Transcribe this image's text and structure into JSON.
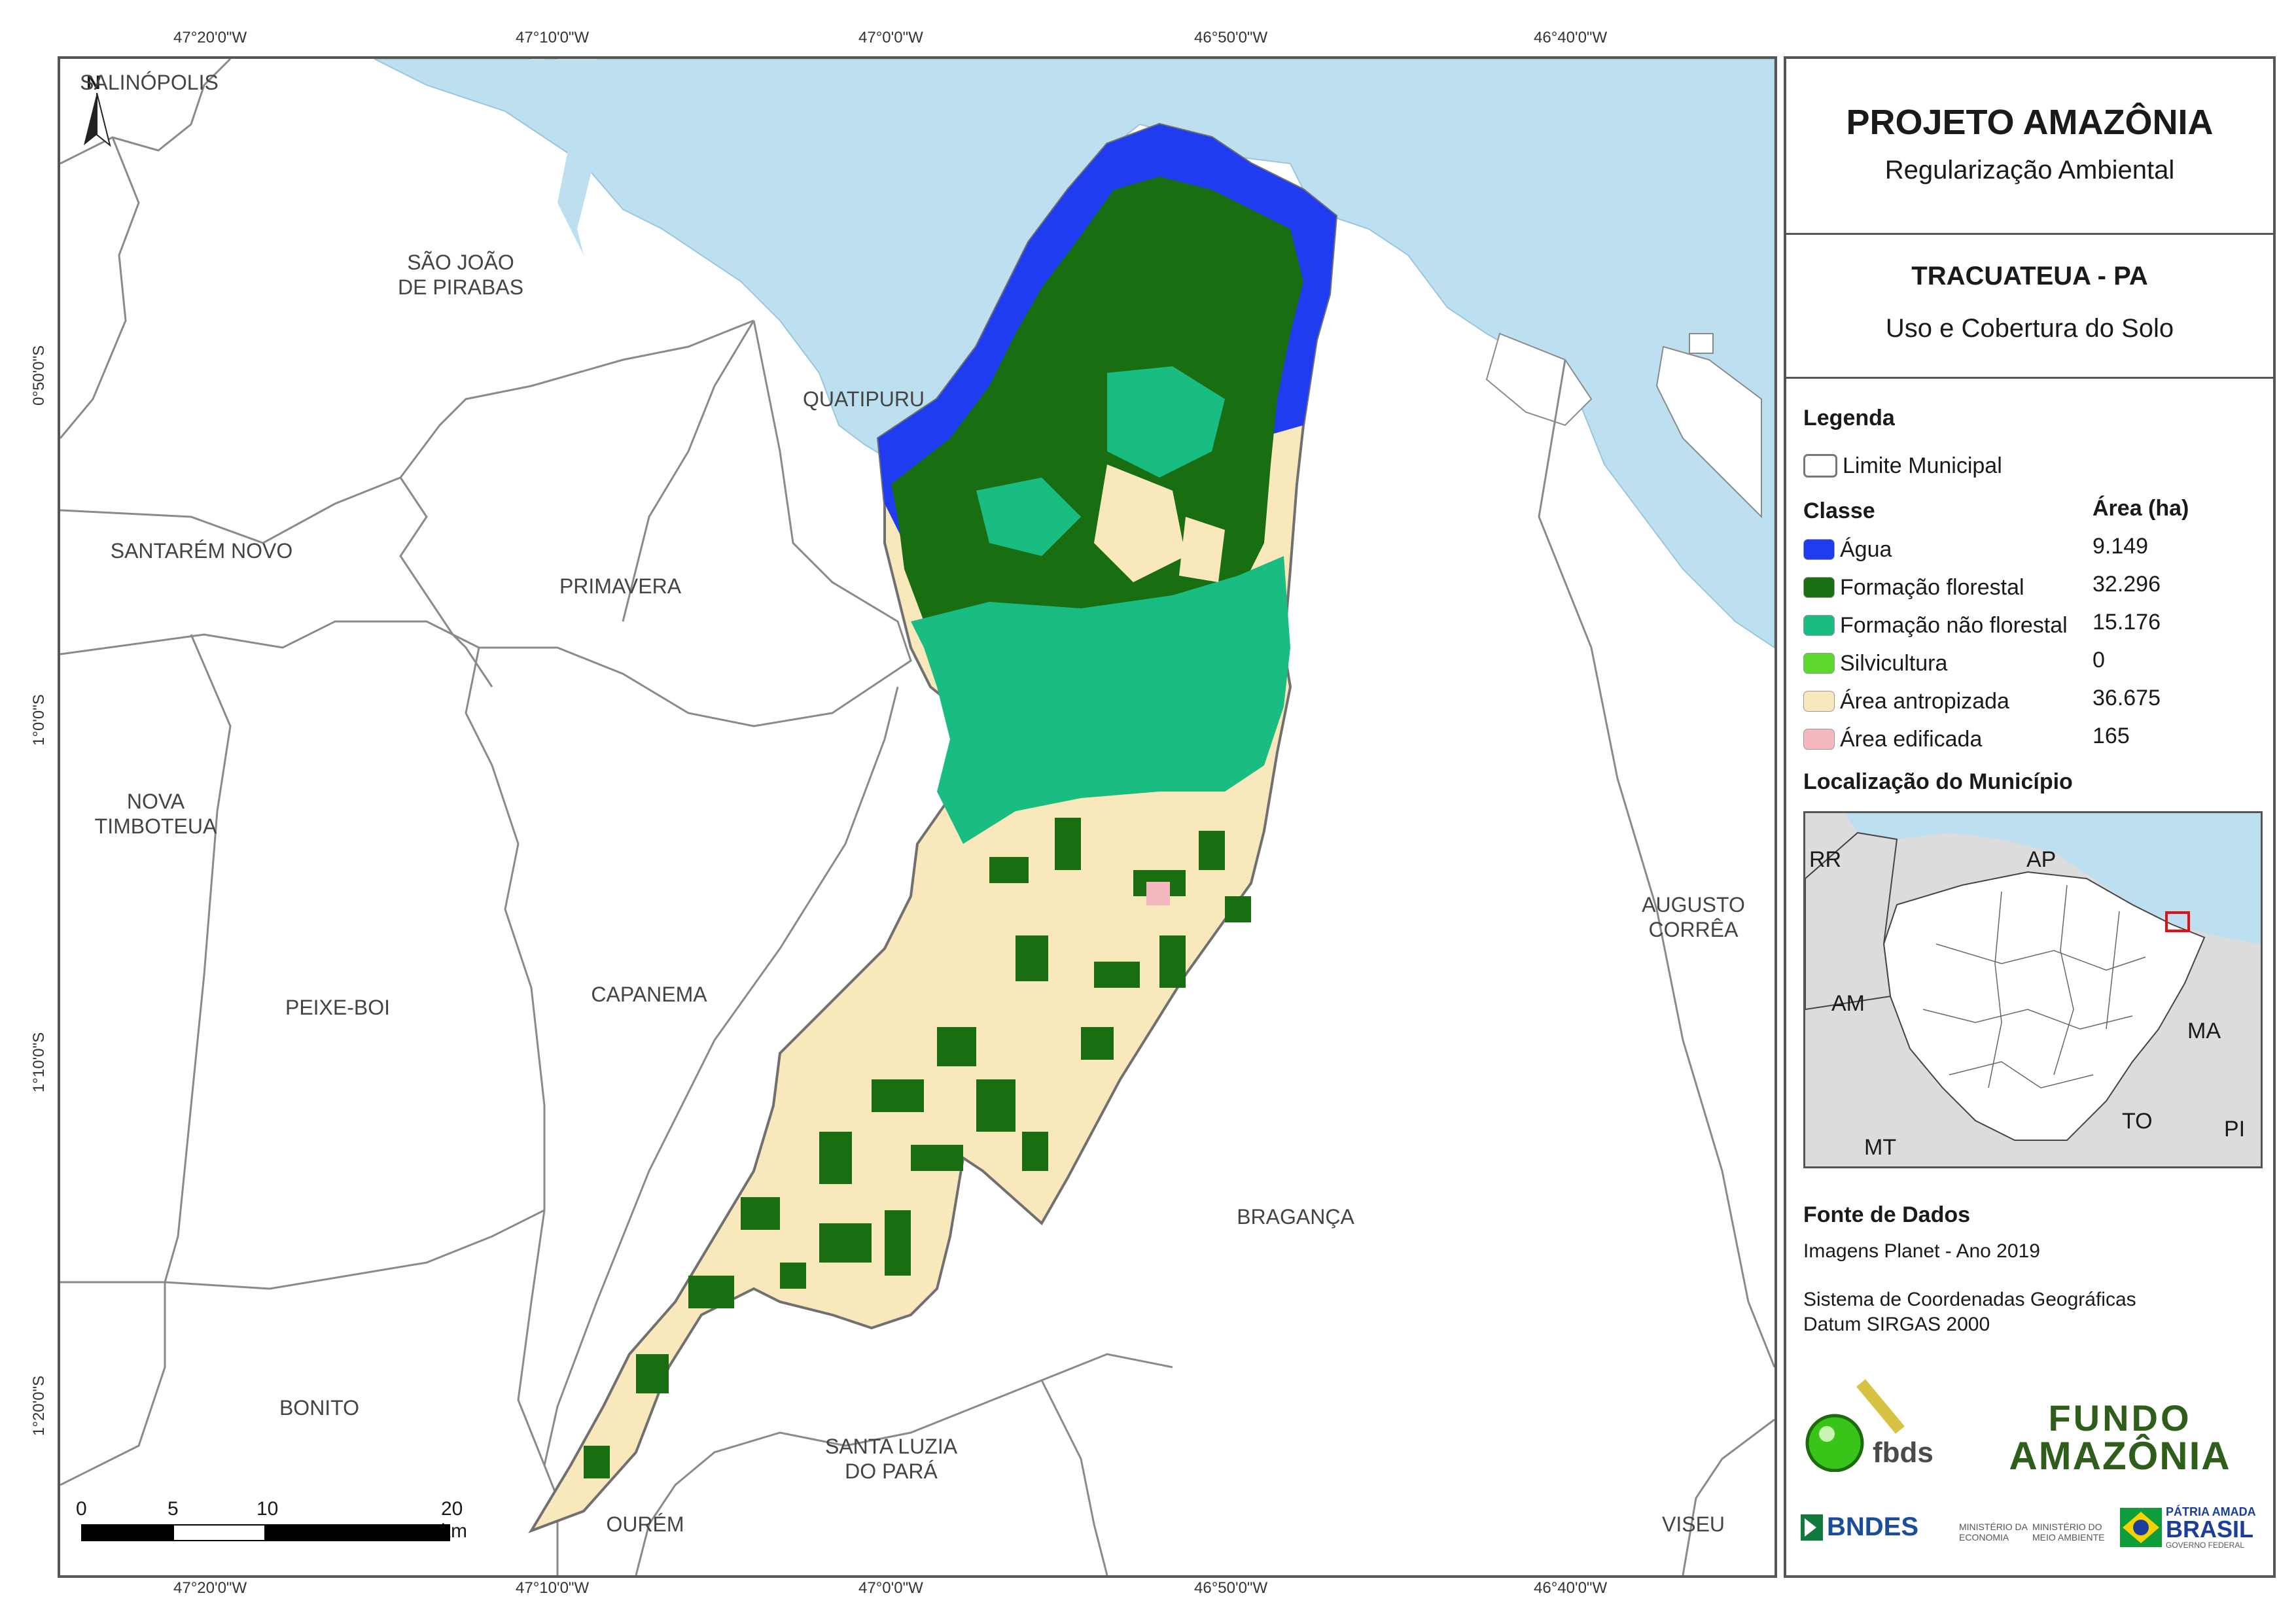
{
  "coordinates": {
    "top_ticks": [
      "47°20'0\"W",
      "47°10'0\"W",
      "47°0'0\"W",
      "46°50'0\"W",
      "46°40'0\"W"
    ],
    "bottom_ticks": [
      "47°20'0\"W",
      "47°10'0\"W",
      "47°0'0\"W",
      "46°50'0\"W",
      "46°40'0\"W"
    ],
    "left_ticks": [
      "0°50'0\"S",
      "1°0'0\"S",
      "1°10'0\"S",
      "1°20'0\"S"
    ]
  },
  "map": {
    "north_label": "N",
    "municipalities": {
      "salinopolis": "SALINÓPOLIS",
      "sao_joao": "SÃO JOÃO\nDE PIRABAS",
      "quatipuru": "QUATIPURU",
      "santarem_novo": "SANTARÉM NOVO",
      "primavera": "PRIMAVERA",
      "nova_timboteua": "NOVA\nTIMBOTEUA",
      "peixe_boi": "PEIXE-BOI",
      "capanema": "CAPANEMA",
      "augusto_correa": "AUGUSTO\nCORRÊA",
      "braganca": "BRAGANÇA",
      "bonito": "BONITO",
      "santa_luzia": "SANTA LUZIA\nDO PARÁ",
      "ourem": "OURÉM",
      "viseu": "VISEU"
    },
    "scale_labels": [
      "0",
      "5",
      "10",
      "20 km"
    ],
    "colors": {
      "water": "#bde0f0",
      "agua": "#1f3cf0",
      "formacao_florestal": "#1a6e12",
      "formacao_nao_florestal": "#19bd82",
      "silvicultura": "#5cd92c",
      "area_antropizada": "#fae8bd",
      "area_edificada": "#f5b8bf",
      "muni_line": "#8a8a8a",
      "muni_fill": "#ffffff"
    }
  },
  "panel": {
    "title": "PROJETO AMAZÔNIA",
    "subtitle": "Regularização Ambiental",
    "municipality": "TRACUATEUA - PA",
    "theme": "Uso e Cobertura do Solo",
    "legend_heading": "Legenda",
    "limit_label": "Limite Municipal",
    "class_heading": "Classe",
    "area_heading": "Área (ha)",
    "classes": [
      {
        "label": "Água",
        "area": "9.149",
        "color": "#1f3cf0"
      },
      {
        "label": "Formação florestal",
        "area": "32.296",
        "color": "#1a6e12"
      },
      {
        "label": "Formação não florestal",
        "area": "15.176",
        "color": "#19bd82"
      },
      {
        "label": "Silvicultura",
        "area": "0",
        "color": "#5cd92c"
      },
      {
        "label": "Área antropizada",
        "area": "36.675",
        "color": "#fae8bd"
      },
      {
        "label": "Área edificada",
        "area": "165",
        "color": "#f5b8bf"
      }
    ],
    "location_heading": "Localização do Município",
    "inset_labels": {
      "rr": "RR",
      "ap": "AP",
      "am": "AM",
      "ma": "MA",
      "mt": "MT",
      "to": "TO",
      "pi": "PI"
    },
    "sources_heading": "Fonte de Dados",
    "source_line": "Imagens Planet - Ano 2019",
    "crs_line1": "Sistema de Coordenadas Geográficas",
    "crs_line2": "Datum SIRGAS 2000",
    "logos": {
      "fbds": "fbds",
      "fundo1": "FUNDO",
      "fundo2": "AMAZÔNIA",
      "bndes": "BNDES",
      "min_econ": "MINISTÉRIO DA ECONOMIA",
      "min_amb": "MINISTÉRIO DO MEIO AMBIENTE",
      "patria1": "PÁTRIA AMADA",
      "patria2": "BRASIL",
      "patria3": "GOVERNO FEDERAL"
    }
  }
}
